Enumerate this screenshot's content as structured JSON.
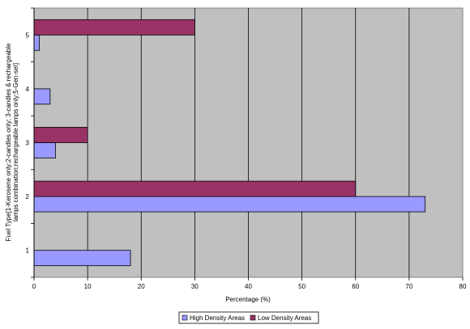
{
  "chart_data": {
    "type": "bar",
    "orientation": "horizontal",
    "categories": [
      "1",
      "2",
      "3",
      "4",
      "5"
    ],
    "series": [
      {
        "name": "High Density Areas",
        "values": [
          18,
          73,
          4,
          3,
          1
        ],
        "color": "#9999ff"
      },
      {
        "name": "Low Density Areas",
        "values": [
          0,
          60,
          10,
          0,
          30
        ],
        "color": "#993366"
      }
    ],
    "xlabel": "Percentage (%)",
    "ylabel_lines": [
      "Fuel Type[1-Kerosene only;2-candles only; 3-candles & rechargeable",
      "lamps combination;rechargeable lamps only;5-Gen-set]"
    ],
    "xlim": [
      0,
      80
    ],
    "xticks": [
      "0",
      "10",
      "20",
      "30",
      "40",
      "50",
      "60",
      "70",
      "80"
    ],
    "grid": "vertical",
    "plot_background": "#c0c0c0",
    "legend_position": "bottom"
  }
}
